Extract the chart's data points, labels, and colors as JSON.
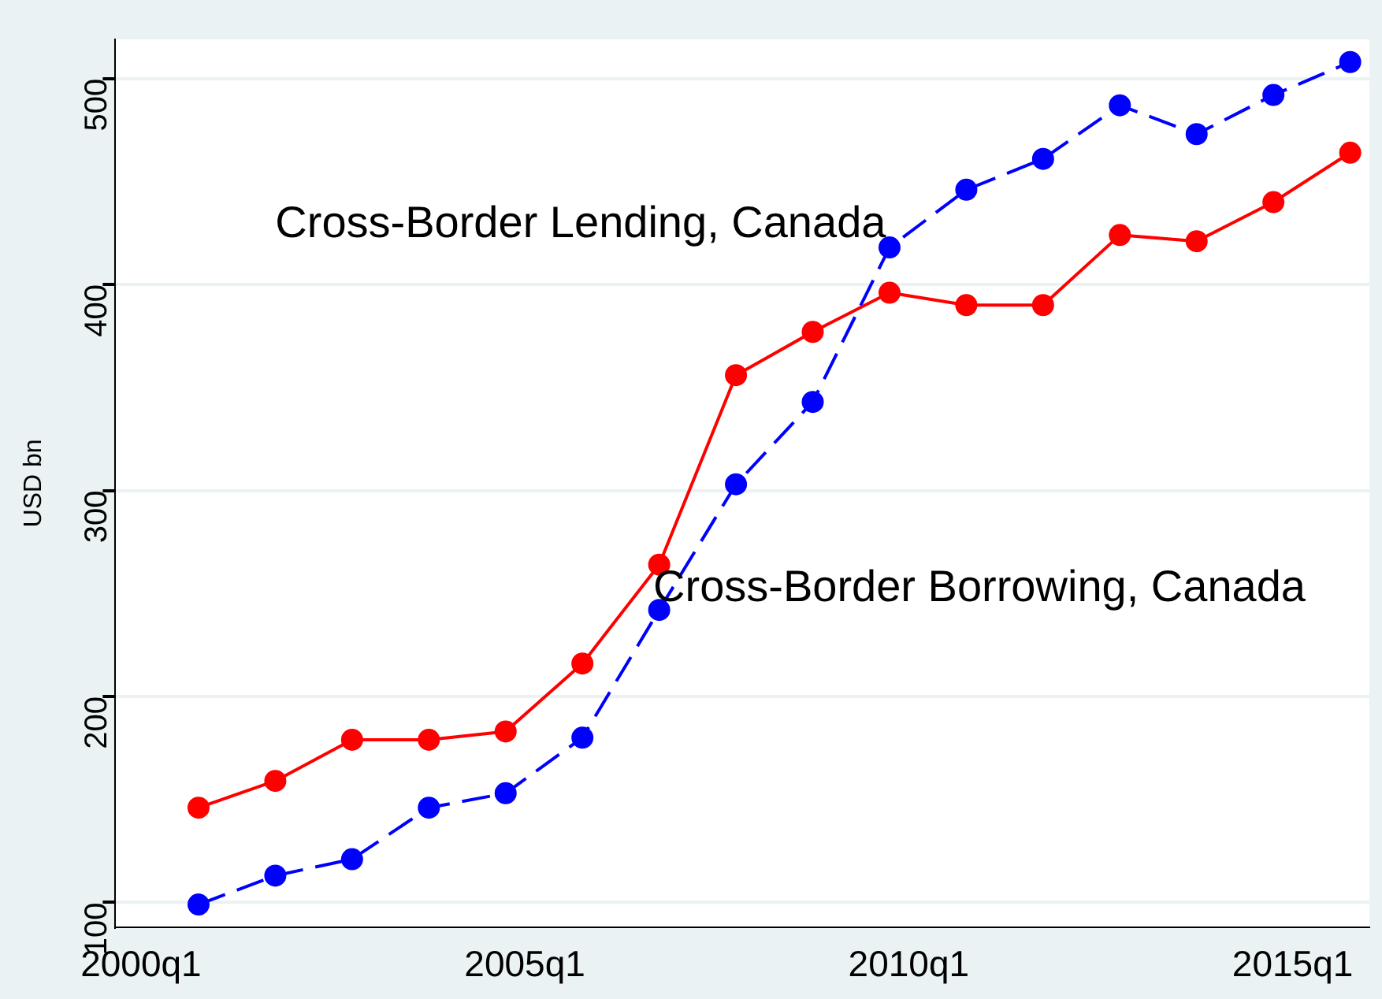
{
  "chart_data": {
    "type": "line",
    "ylabel": "USD bn",
    "x": [
      "2000-10",
      "2001-10",
      "2002-10",
      "2003-10",
      "2004-10",
      "2005-10",
      "2006-10",
      "2007-10",
      "2008-10",
      "2009-10",
      "2010-10",
      "2011-10",
      "2012-10",
      "2013-10",
      "2014-10",
      "2015-10"
    ],
    "series": [
      {
        "color": "#ff0000",
        "line_style": "solid",
        "values": [
          146,
          159,
          179,
          179,
          183,
          216,
          264,
          356,
          377,
          396,
          390,
          390,
          424,
          421,
          440,
          464
        ]
      },
      {
        "color": "#0000ff",
        "line_style": "dashed",
        "values": [
          99,
          113,
          121,
          146,
          153,
          180,
          242,
          303,
          343,
          418,
          446,
          461,
          487,
          473,
          492,
          508
        ]
      }
    ],
    "xlim": [
      "1999-09",
      "2016-01"
    ],
    "xticks": [
      {
        "value": "2000-01",
        "label": "2000q1"
      },
      {
        "value": "2005-01",
        "label": "2005q1"
      },
      {
        "value": "2010-01",
        "label": "2010q1"
      },
      {
        "value": "2015-01",
        "label": "2015q1"
      }
    ],
    "ylim": [
      88,
      519
    ],
    "yticks": [
      100,
      200,
      300,
      400,
      500
    ],
    "grid": "y",
    "legend": false,
    "marker": "circle",
    "annotations": [
      "Cross-Border Lending, Canada",
      "Cross-Border Borrowing, Canada"
    ]
  }
}
